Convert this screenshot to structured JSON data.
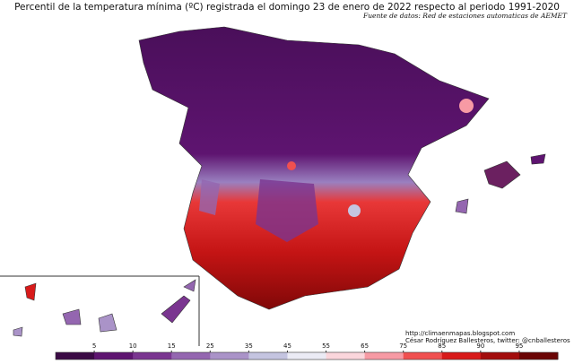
{
  "title": "Percentil de la temperatura mínima (ºC) registrada el domingo 23 de enero de 2022 respecto al periodo 1991-2020",
  "source": "Fuente de datos: Red de estaciones automaticas de AEMET",
  "url": "http://climaenmapas.blogspot.com",
  "credit": "César Rodríguez Ballesteros, twitter: @cnballesteros",
  "colorbar": {
    "ticks": [
      5,
      10,
      15,
      25,
      35,
      45,
      55,
      65,
      75,
      85,
      90,
      95
    ],
    "colors": [
      "#3b0a45",
      "#5e1470",
      "#7a3590",
      "#9466b0",
      "#aa93c8",
      "#c4c4e0",
      "#ebebf5",
      "#fbd6dc",
      "#f79aa4",
      "#f05050",
      "#d81a1a",
      "#a30d0d",
      "#6b0505"
    ]
  }
}
